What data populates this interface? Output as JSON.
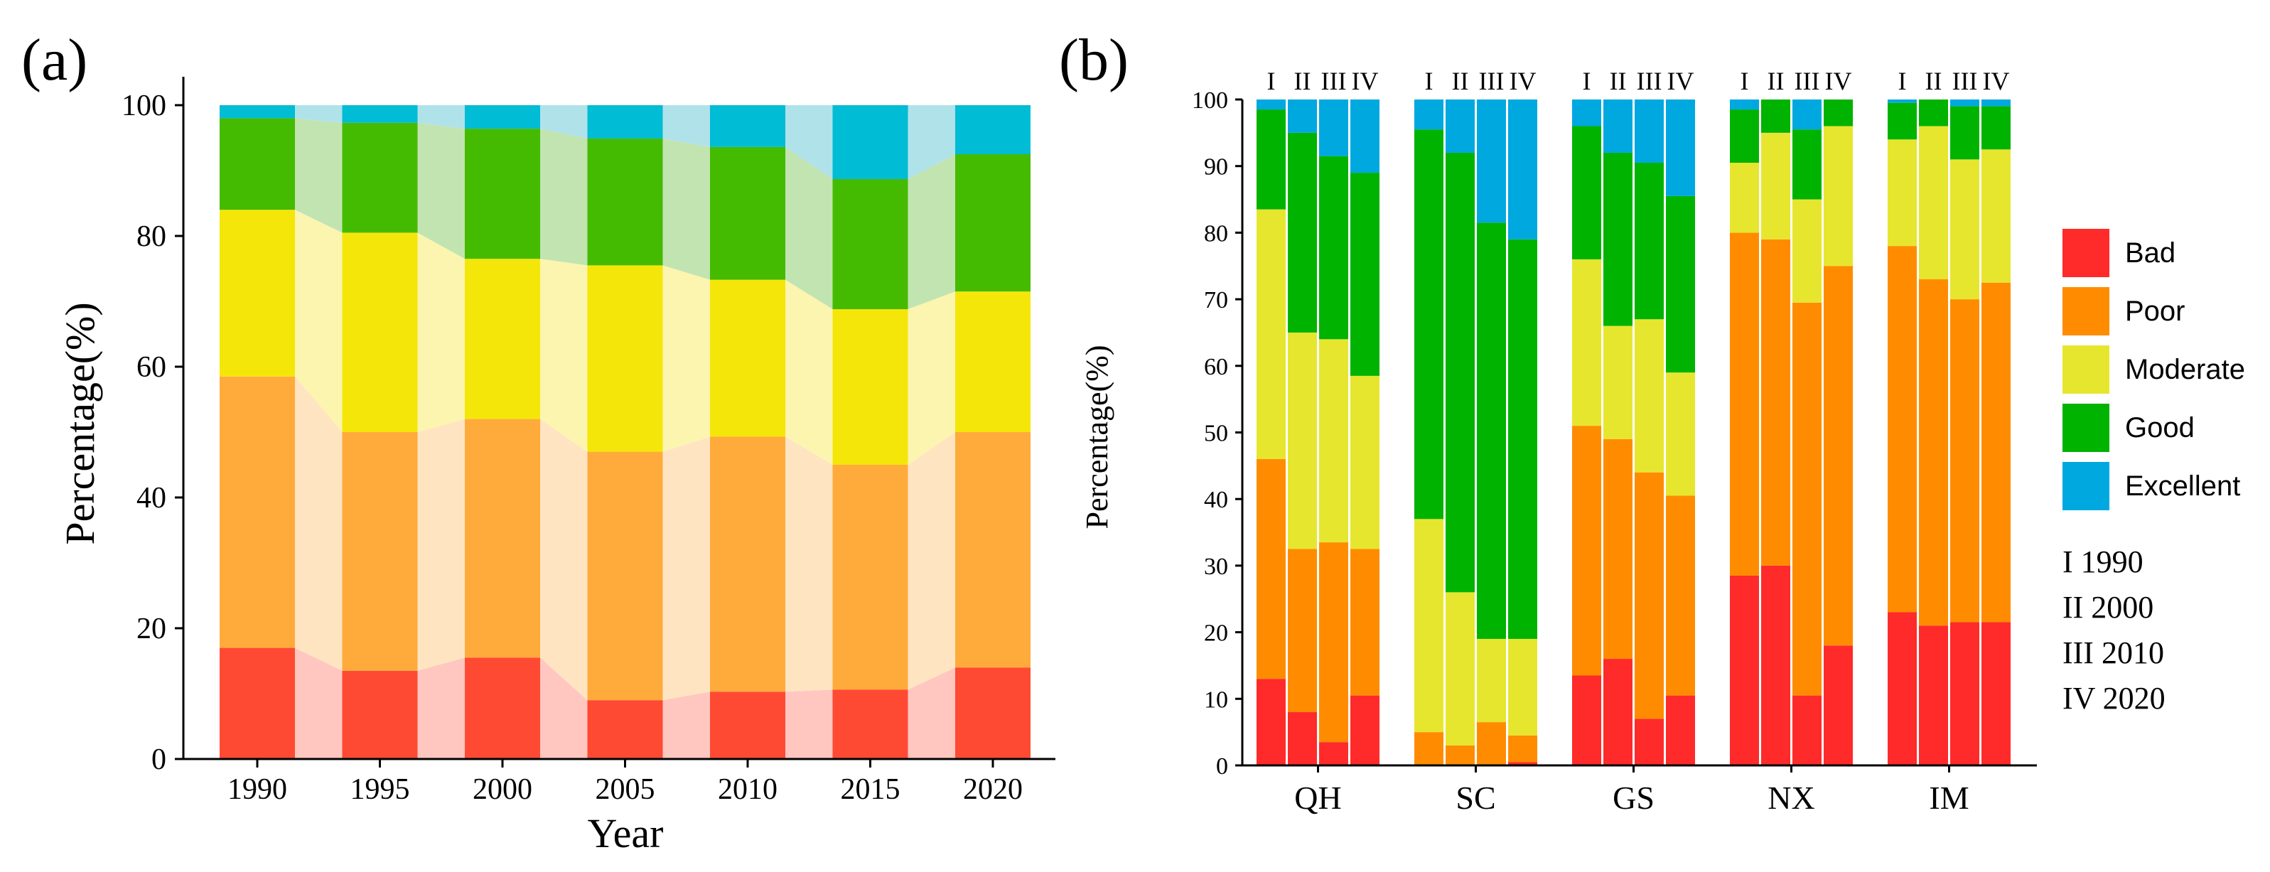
{
  "chart_data": [
    {
      "type": "stacked-bar",
      "panel_label": "(a)",
      "xlabel": "Year",
      "ylabel": "Percentage(%)",
      "ylim": [
        0,
        100
      ],
      "yticks": [
        "0",
        "20",
        "40",
        "60",
        "80",
        "100"
      ],
      "categories": [
        "1990",
        "1995",
        "2000",
        "2005",
        "2010",
        "2015",
        "2020"
      ],
      "series": [
        {
          "name": "Bad",
          "color": "#FF4A33",
          "band_color": "#FFC7C0",
          "values": [
            17,
            13.5,
            15.5,
            9,
            10.3,
            10.6,
            14
          ]
        },
        {
          "name": "Poor",
          "color": "#FFAB3B",
          "band_color": "#FFE4C2",
          "values": [
            41.5,
            36.5,
            36.5,
            38,
            39,
            34.4,
            36
          ]
        },
        {
          "name": "Moderate",
          "color": "#F5E60A",
          "band_color": "#FBF5B0",
          "values": [
            25.5,
            30.5,
            24.5,
            28.5,
            24,
            23.8,
            21.5
          ]
        },
        {
          "name": "Good",
          "color": "#44BB00",
          "band_color": "#C2E4B0",
          "values": [
            14,
            16.8,
            19.9,
            19.4,
            20.3,
            19.9,
            21
          ]
        },
        {
          "name": "Excellent",
          "color": "#00BCD4",
          "band_color": "#B0E2EA",
          "values": [
            2,
            2.7,
            3.6,
            5.1,
            6.4,
            11.3,
            7.5
          ]
        }
      ]
    },
    {
      "type": "grouped-stacked-bar",
      "panel_label": "(b)",
      "ylabel": "Percentage(%)",
      "ylim": [
        0,
        100
      ],
      "yticks": [
        "0",
        "10",
        "20",
        "30",
        "40",
        "50",
        "60",
        "70",
        "80",
        "90",
        "100"
      ],
      "groups": [
        "QH",
        "SC",
        "GS",
        "NX",
        "IM"
      ],
      "sub_labels": [
        "I",
        "II",
        "III",
        "IV"
      ],
      "legend": {
        "position": "right",
        "entries": [
          {
            "name": "Bad",
            "color": "#FF2A2A"
          },
          {
            "name": "Poor",
            "color": "#FF8C00"
          },
          {
            "name": "Moderate",
            "color": "#E6E62E"
          },
          {
            "name": "Good",
            "color": "#00B300"
          },
          {
            "name": "Excellent",
            "color": "#00A8E0"
          }
        ],
        "period_key": [
          "I    1990",
          "II  2000",
          "III 2010",
          "IV 2020"
        ]
      },
      "data": {
        "QH": [
          [
            13,
            33,
            37.5,
            15,
            1.5
          ],
          [
            8,
            24.5,
            32.5,
            30,
            5
          ],
          [
            3.5,
            30,
            30.5,
            27.5,
            8.5
          ],
          [
            10.5,
            22,
            26,
            30.5,
            11
          ]
        ],
        "SC": [
          [
            0,
            5,
            32,
            58.5,
            4.5
          ],
          [
            0,
            3,
            23,
            66,
            8
          ],
          [
            0,
            6.5,
            12.5,
            62.5,
            18.5
          ],
          [
            0.5,
            4,
            14.5,
            60,
            21
          ]
        ],
        "GS": [
          [
            13.5,
            37.5,
            25,
            20,
            4
          ],
          [
            16,
            33,
            17,
            26,
            8
          ],
          [
            7,
            37,
            23,
            23.5,
            9.5
          ],
          [
            10.5,
            30,
            18.5,
            26.5,
            14.5
          ]
        ],
        "NX": [
          [
            28.5,
            51.5,
            10.5,
            8,
            1.5
          ],
          [
            30,
            49,
            16,
            5,
            0
          ],
          [
            10.5,
            59,
            15.5,
            10.5,
            4.5
          ],
          [
            18,
            57,
            21,
            4,
            0
          ]
        ],
        "IM": [
          [
            23,
            55,
            16,
            5.5,
            0.5
          ],
          [
            21,
            52,
            23,
            4,
            0
          ],
          [
            21.5,
            48.5,
            21,
            8,
            1
          ],
          [
            21.5,
            51,
            20,
            6.5,
            1
          ]
        ]
      }
    }
  ]
}
